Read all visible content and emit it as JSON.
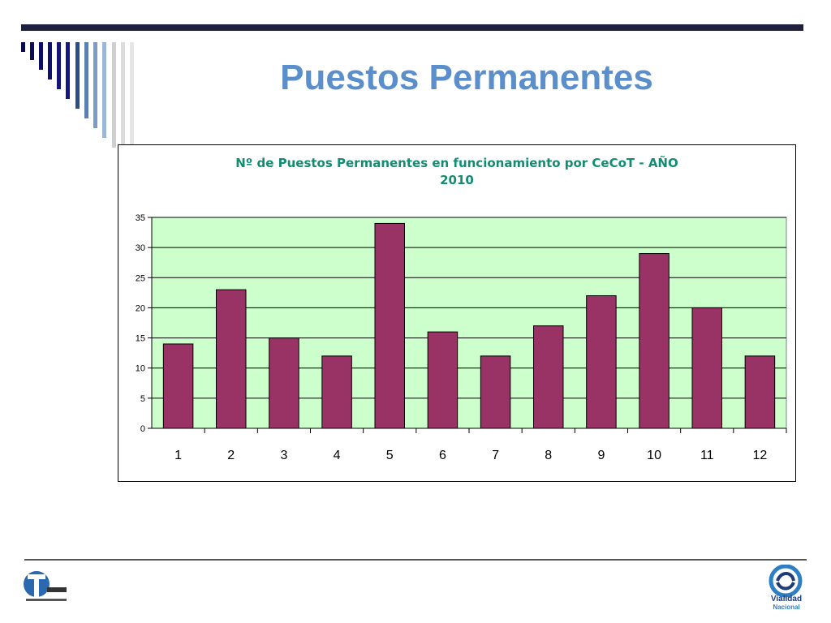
{
  "slide": {
    "title": "Puestos Permanentes"
  },
  "colors": {
    "title": "#5b8fcc",
    "chart_title": "#128c73",
    "plot_bg": "#ccffcc",
    "bar": "#993366",
    "top_bar": "#1f1f3f"
  },
  "chart_data": {
    "type": "bar",
    "title_lines": [
      "Nº de Puestos Permanentes en funcionamiento por CeCoT - AÑO",
      "2010"
    ],
    "categories": [
      "1",
      "2",
      "3",
      "4",
      "5",
      "6",
      "7",
      "8",
      "9",
      "10",
      "11",
      "12"
    ],
    "values": [
      14,
      23,
      15,
      12,
      34,
      16,
      12,
      17,
      22,
      29,
      20,
      12
    ],
    "ylim": [
      0,
      35
    ],
    "yticks": [
      0,
      5,
      10,
      15,
      20,
      25,
      30,
      35
    ],
    "grid": true,
    "legend": "none",
    "xlabel": "",
    "ylabel": ""
  },
  "logos": {
    "right_line1": "Vialidad",
    "right_line2": "Nacional"
  }
}
